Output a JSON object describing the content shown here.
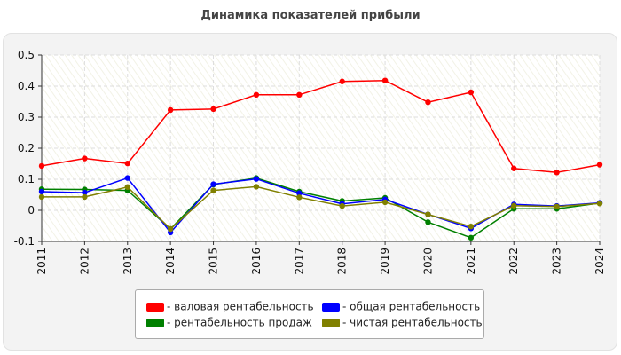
{
  "title": "Динамика показателей прибыли",
  "chart_data": {
    "type": "line",
    "x": [
      "2011",
      "2012",
      "2013",
      "2014",
      "2015",
      "2016",
      "2017",
      "2018",
      "2019",
      "2020",
      "2021",
      "2022",
      "2023",
      "2024"
    ],
    "ylim": [
      -0.1,
      0.5
    ],
    "yticks": [
      "-0.1",
      "0",
      "0.1",
      "0.2",
      "0.3",
      "0.4",
      "0.5"
    ],
    "ytick_values": [
      -0.1,
      0,
      0.1,
      0.2,
      0.3,
      0.4,
      0.5
    ],
    "grid": true,
    "legend_placement": "bottom",
    "series": [
      {
        "name": "- валовая рентабельность",
        "color": "#ff0000",
        "values": [
          0.143,
          0.167,
          0.151,
          0.323,
          0.326,
          0.372,
          0.372,
          0.415,
          0.418,
          0.348,
          0.38,
          0.135,
          0.122,
          0.147
        ]
      },
      {
        "name": "- рентабельность продаж",
        "color": "#008000",
        "values": [
          0.068,
          0.067,
          0.064,
          -0.06,
          0.083,
          0.104,
          0.06,
          0.03,
          0.04,
          -0.038,
          -0.088,
          0.005,
          0.005,
          0.023
        ]
      },
      {
        "name": "- общая рентабельность",
        "color": "#0000ff",
        "values": [
          0.06,
          0.057,
          0.104,
          -0.071,
          0.084,
          0.101,
          0.055,
          0.021,
          0.035,
          -0.013,
          -0.058,
          0.019,
          0.014,
          0.024
        ]
      },
      {
        "name": "- чистая рентабельность",
        "color": "#808000",
        "values": [
          0.043,
          0.043,
          0.075,
          -0.06,
          0.064,
          0.076,
          0.042,
          0.014,
          0.026,
          -0.013,
          -0.052,
          0.015,
          0.012,
          0.022
        ]
      }
    ]
  }
}
